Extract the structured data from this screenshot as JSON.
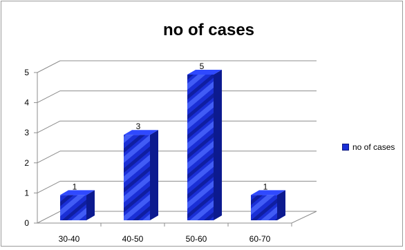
{
  "chart_data": {
    "type": "bar",
    "title": "no of cases",
    "categories": [
      "30-40",
      "40-50",
      "50-60",
      "60-70"
    ],
    "series": [
      {
        "name": "no of cases",
        "values": [
          1,
          3,
          5,
          1
        ]
      }
    ],
    "data_labels": [
      "1",
      "3",
      "5",
      "1"
    ],
    "ylim": [
      0,
      5
    ],
    "yticks": [
      "0",
      "1",
      "2",
      "3",
      "4",
      "5"
    ],
    "xlabel": "",
    "ylabel": "",
    "grid": true,
    "legend_position": "right",
    "three_d": true,
    "colors": {
      "bar_front": "#1a2fd6",
      "bar_side": "#0c1a8f",
      "bar_top": "#2f49ff",
      "grid": "#8c8c8c"
    }
  }
}
